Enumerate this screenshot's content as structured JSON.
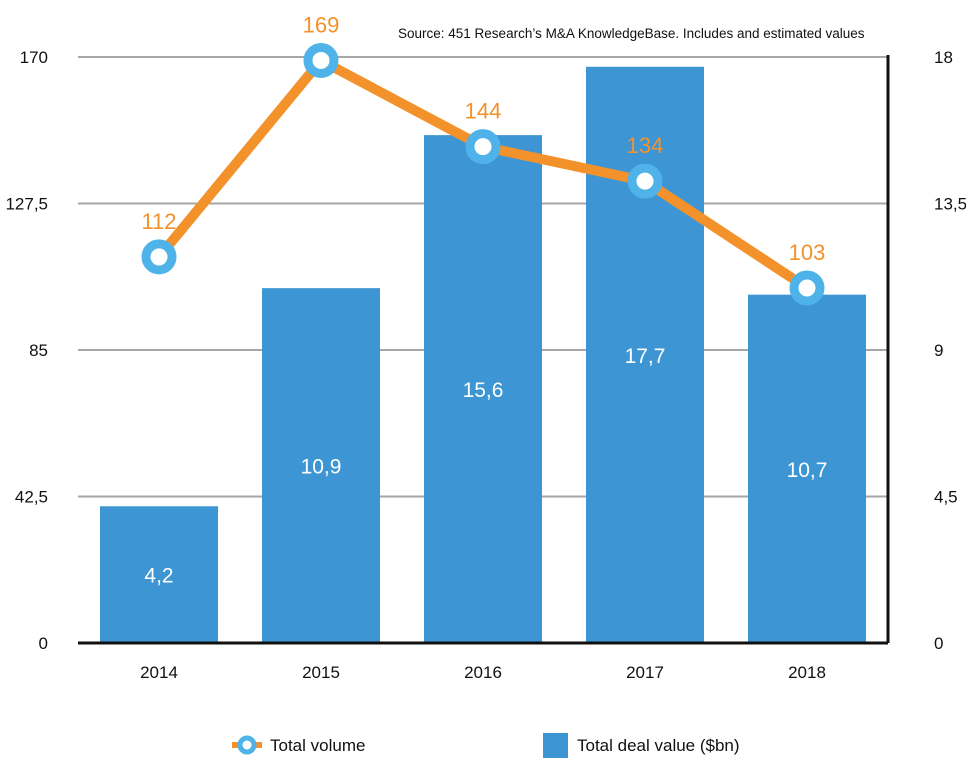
{
  "source_note": "Source: 451 Research’s M&A KnowledgeBase. Includes and estimated values",
  "legend": {
    "line_label": "Total volume",
    "bar_label": "Total deal value ($bn)"
  },
  "colors": {
    "bar": "#3d95d3",
    "line": "#f3922b",
    "marker": "#4fb3ea",
    "point_label": "#f3922b",
    "grid": "#a6a6a6",
    "axis": "#111111"
  },
  "chart_data": {
    "type": "bar",
    "categories": [
      "2014",
      "2015",
      "2016",
      "2017",
      "2018"
    ],
    "series": [
      {
        "name": "Total deal value ($bn)",
        "type": "bar",
        "axis": "right",
        "values": [
          4.2,
          10.9,
          15.6,
          17.7,
          10.7
        ],
        "labels": [
          "4,2",
          "10,9",
          "15,6",
          "17,7",
          "10,7"
        ]
      },
      {
        "name": "Total volume",
        "type": "line",
        "axis": "left",
        "values": [
          112,
          169,
          144,
          134,
          103
        ],
        "labels": [
          "112",
          "169",
          "144",
          "134",
          "103"
        ]
      }
    ],
    "left_axis": {
      "ylim": [
        0,
        170
      ],
      "ticks": [
        0,
        42.5,
        85,
        127.5,
        170
      ],
      "tick_labels": [
        "0",
        "42,5",
        "85",
        "127,5",
        "170"
      ]
    },
    "right_axis": {
      "ylim": [
        0,
        18
      ],
      "ticks": [
        0,
        4.5,
        9,
        13.5,
        18
      ],
      "tick_labels": [
        "0",
        "4,5",
        "9",
        "13,5",
        "18"
      ]
    },
    "grid": true,
    "legend_position": "bottom"
  }
}
